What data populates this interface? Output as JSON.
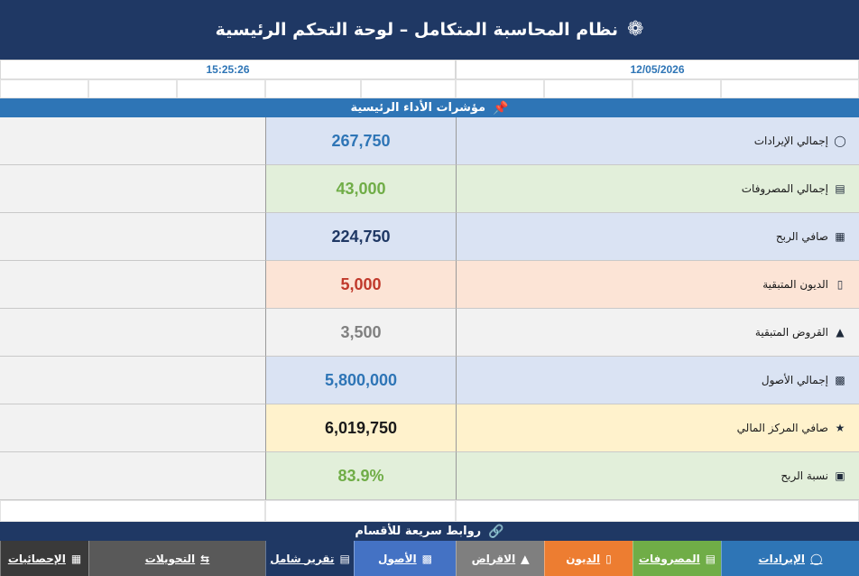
{
  "header": {
    "title": "نظام المحاسبة المتكامل  –  لوحة التحكم الرئيسية",
    "icon": "gear-icon"
  },
  "datetime": {
    "date": "12/05/2026",
    "time": "15:25:26"
  },
  "kpi_section": {
    "title": "مؤشرات الأداء الرئيسية",
    "icon": "pin-icon"
  },
  "kpis": [
    {
      "label": "إجمالي الإيرادات",
      "value": "267,750",
      "icon": "money-bag-icon",
      "color": "#2e75b6",
      "bg": "#dae3f3"
    },
    {
      "label": "إجمالي المصروفات",
      "value": "43,000",
      "icon": "clipboard-icon",
      "color": "#70ad47",
      "bg": "#e2efda"
    },
    {
      "label": "صافي الربح",
      "value": "224,750",
      "icon": "chart-icon",
      "color": "#1f3864",
      "bg": "#dae3f3"
    },
    {
      "label": "الديون المتبقية",
      "value": "5,000",
      "icon": "receipt-icon",
      "color": "#c0392b",
      "bg": "#fce4d6"
    },
    {
      "label": "القروض المتبقية",
      "value": "3,500",
      "icon": "bank-icon",
      "color": "#808080",
      "bg": "#f2f2f2"
    },
    {
      "label": "إجمالي الأصول",
      "value": "5,800,000",
      "icon": "building-icon",
      "color": "#2e75b6",
      "bg": "#dae3f3"
    },
    {
      "label": "صافي المركز المالي",
      "value": "6,019,750",
      "icon": "star-icon",
      "color": "#1a1a1a",
      "bg": "#fff2cc"
    },
    {
      "label": "نسبة الربح",
      "value": "83.9%",
      "icon": "percent-box-icon",
      "color": "#70ad47",
      "bg": "#e2efda"
    }
  ],
  "links_section": {
    "title": "روابط سريعة للأقسام",
    "icon": "link-icon"
  },
  "buttons": [
    {
      "label": "الإيرادات",
      "icon": "money-bag-icon",
      "bg": "#2e75b6"
    },
    {
      "label": "المصروفات",
      "icon": "clipboard-icon",
      "bg": "#70ad47"
    },
    {
      "label": "الديون",
      "icon": "receipt-icon",
      "bg": "#ed7d31"
    },
    {
      "label": "الاقراض",
      "icon": "bank-icon",
      "bg": "#7f7f7f"
    },
    {
      "label": "الأصول",
      "icon": "building-icon",
      "bg": "#4472c4"
    },
    {
      "label": "تقرير شامل",
      "icon": "document-icon",
      "bg": "#1f3864"
    },
    {
      "label": "التحويلات",
      "icon": "transfer-icon",
      "bg": "#595959"
    },
    {
      "label": "الإحصائيات",
      "icon": "chart-icon",
      "bg": "#3a3a3a"
    }
  ]
}
